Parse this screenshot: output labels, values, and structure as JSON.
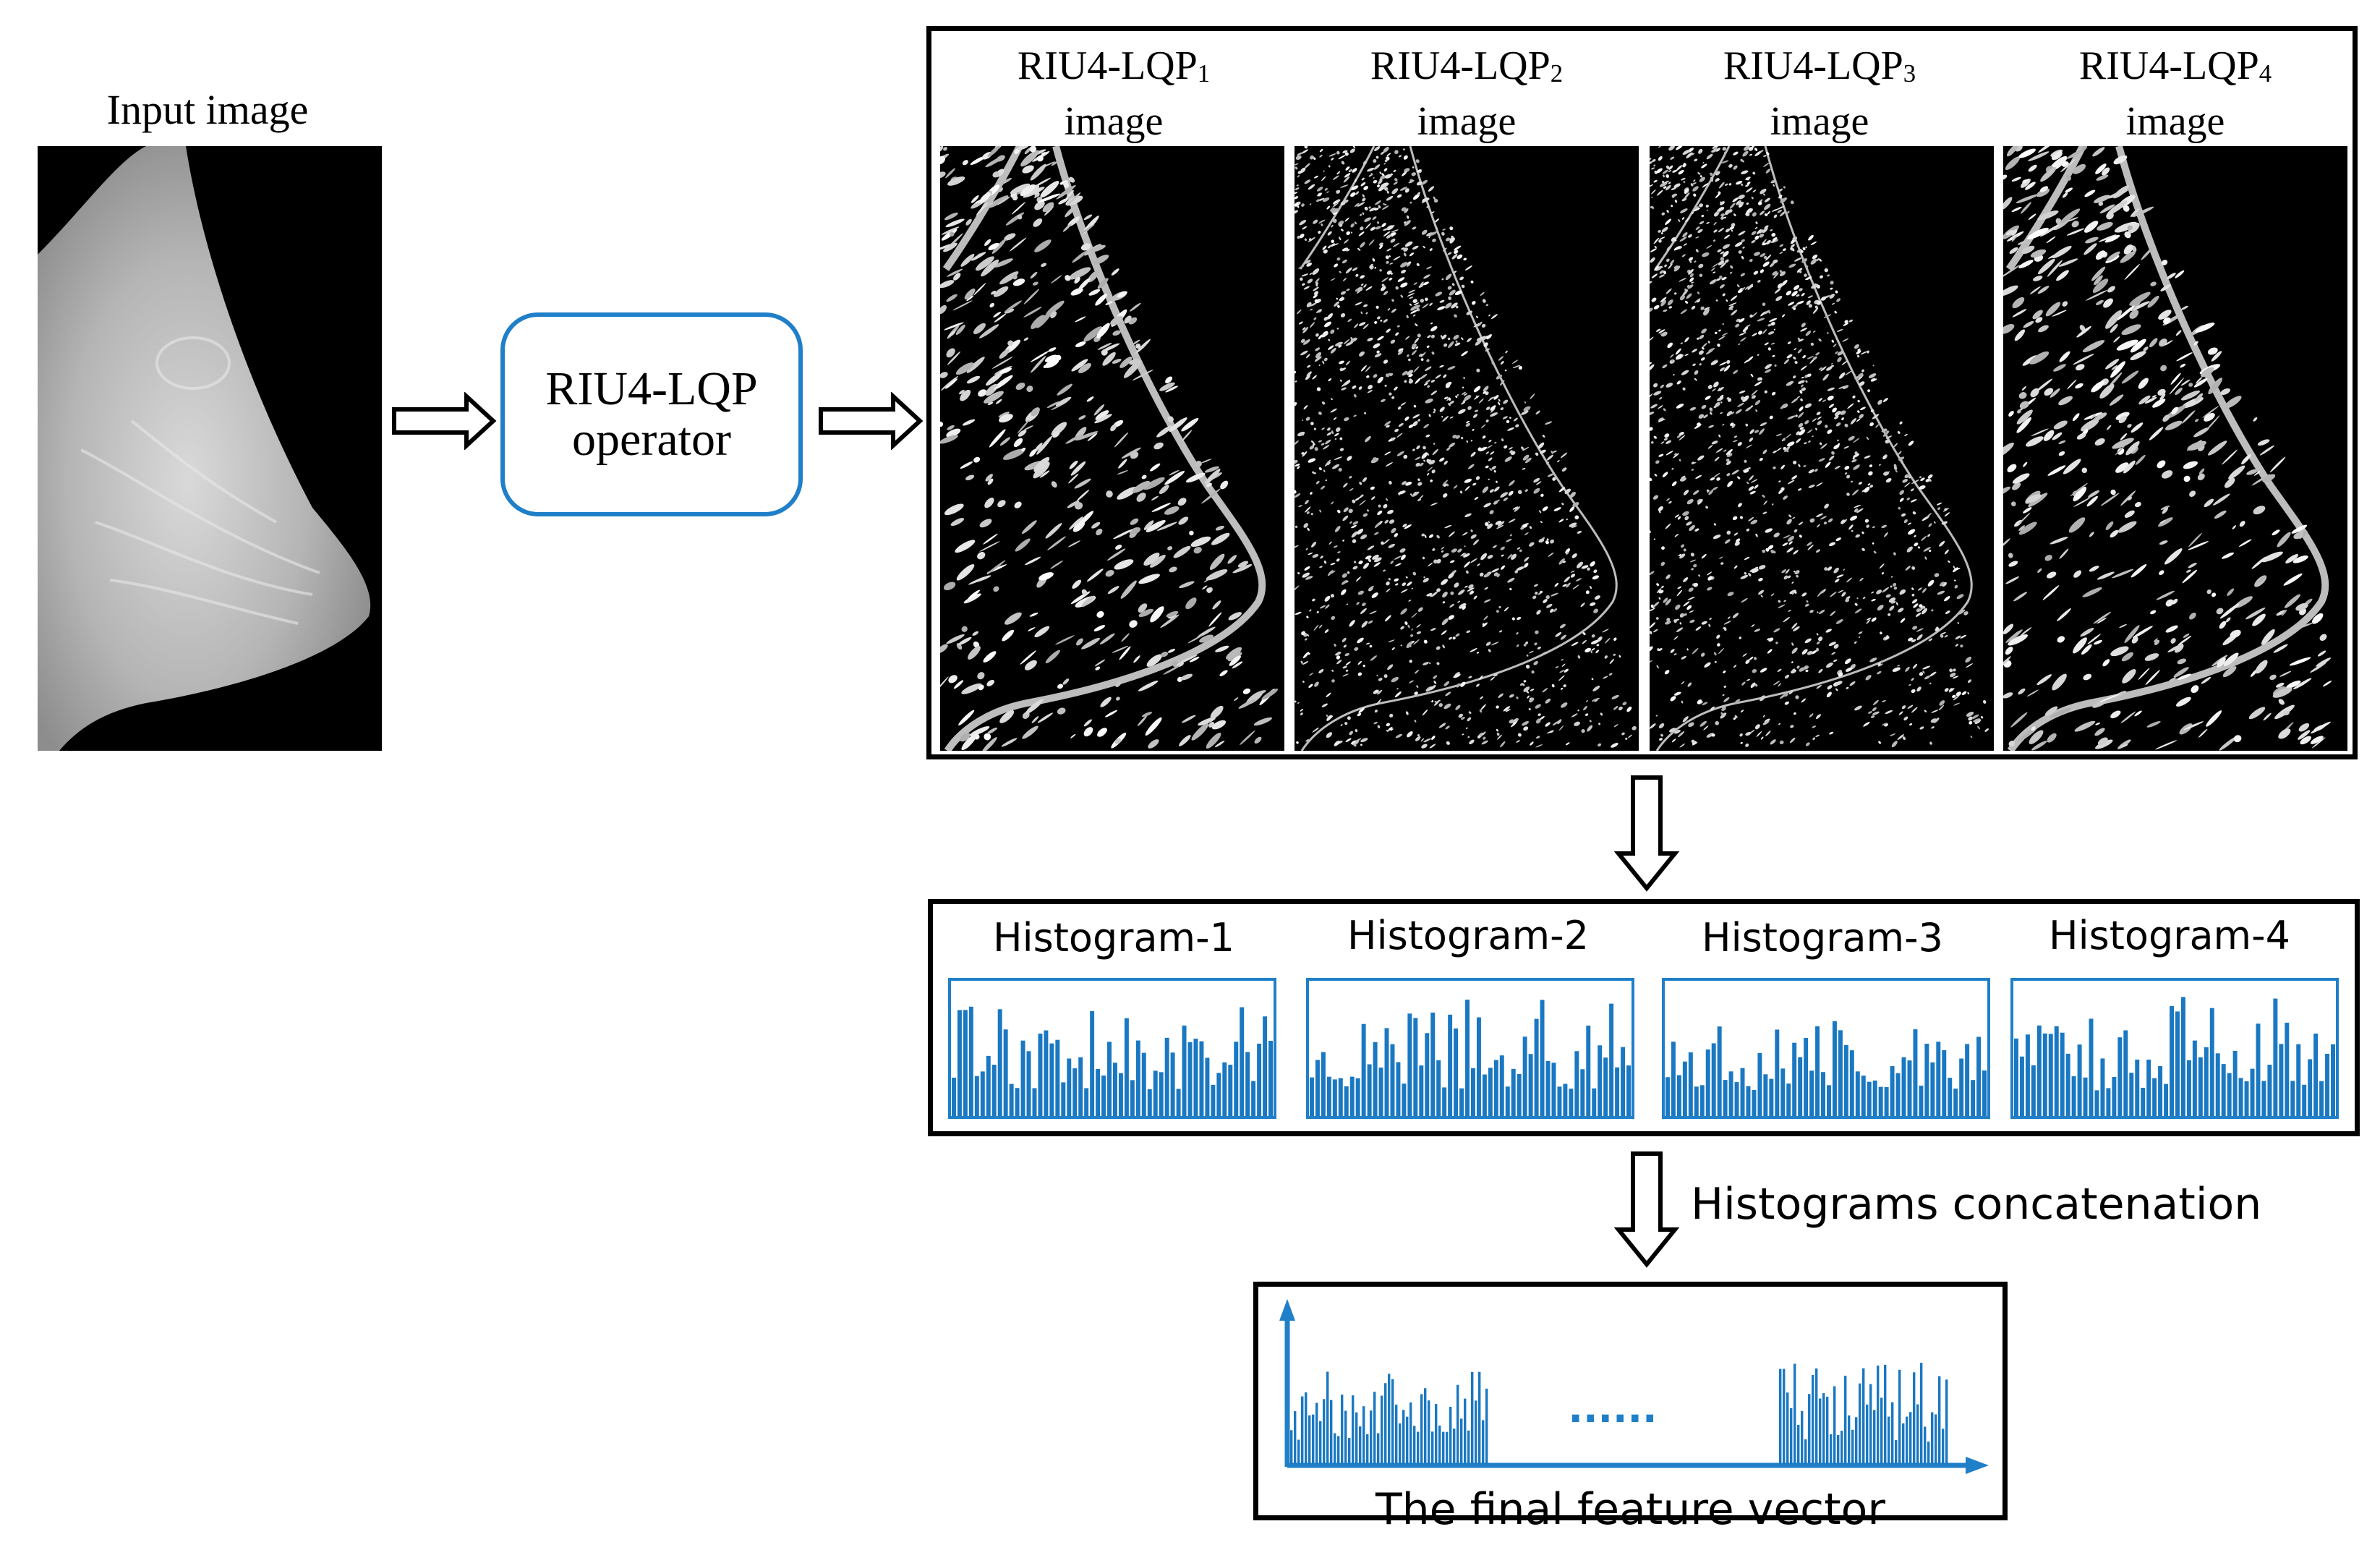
{
  "input": {
    "label": "Input image"
  },
  "operator": {
    "line1": "RIU4-LQP",
    "line2": "operator"
  },
  "lqp_images": [
    {
      "prefix": "RIU4-LQP",
      "sub": "1",
      "suffix": "image"
    },
    {
      "prefix": "RIU4-LQP",
      "sub": "2",
      "suffix": "image"
    },
    {
      "prefix": "RIU4-LQP",
      "sub": "3",
      "suffix": "image"
    },
    {
      "prefix": "RIU4-LQP",
      "sub": "4",
      "suffix": "image"
    }
  ],
  "histograms": [
    {
      "label": "Histogram-1"
    },
    {
      "label": "Histogram-2"
    },
    {
      "label": "Histogram-3"
    },
    {
      "label": "Histogram-4"
    }
  ],
  "concatenation": {
    "label": "Histograms concatenation"
  },
  "final": {
    "label": "The final feature vector",
    "ellipsis": "......"
  },
  "colors": {
    "accent": "#1f7fc8",
    "bar": "#1a78c2",
    "frame": "#000000"
  },
  "icons": {
    "arrow": "hollow-arrow-icon"
  }
}
